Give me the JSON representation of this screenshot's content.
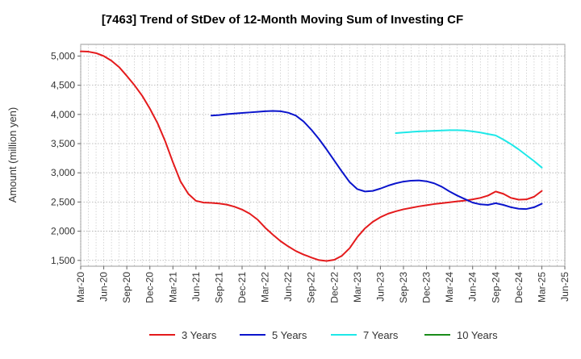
{
  "chart_data": {
    "type": "line",
    "title": "[7463]  Trend of StDev of 12-Month Moving Sum of Investing CF",
    "xlabel": "",
    "ylabel": "Amount (million yen)",
    "ylim": [
      1400,
      5200
    ],
    "y_ticks": [
      1500,
      2000,
      2500,
      3000,
      3500,
      4000,
      4500,
      5000
    ],
    "y_tick_labels": [
      "1,500",
      "2,000",
      "2,500",
      "3,000",
      "3,500",
      "4,000",
      "4,500",
      "5,000"
    ],
    "x_range": [
      "Mar-20",
      "Jun-25"
    ],
    "x_tick_labels": [
      "Mar-20",
      "Jun-20",
      "Sep-20",
      "Dec-20",
      "Mar-21",
      "Jun-21",
      "Sep-21",
      "Dec-21",
      "Mar-22",
      "Jun-22",
      "Sep-22",
      "Dec-22",
      "Mar-23",
      "Jun-23",
      "Sep-23",
      "Dec-23",
      "Mar-24",
      "Jun-24",
      "Sep-24",
      "Dec-24",
      "Mar-25",
      "Jun-25"
    ],
    "grid": true,
    "legend_position": "bottom",
    "series": [
      {
        "name": "3 Years",
        "color": "#e41a1c",
        "points": [
          [
            "Mar-20",
            5080
          ],
          [
            "Apr-20",
            5075
          ],
          [
            "May-20",
            5050
          ],
          [
            "Jun-20",
            5000
          ],
          [
            "Jul-20",
            4920
          ],
          [
            "Aug-20",
            4810
          ],
          [
            "Sep-20",
            4660
          ],
          [
            "Oct-20",
            4500
          ],
          [
            "Nov-20",
            4320
          ],
          [
            "Dec-20",
            4100
          ],
          [
            "Jan-21",
            3850
          ],
          [
            "Feb-21",
            3540
          ],
          [
            "Mar-21",
            3180
          ],
          [
            "Apr-21",
            2850
          ],
          [
            "May-21",
            2640
          ],
          [
            "Jun-21",
            2520
          ],
          [
            "Jul-21",
            2490
          ],
          [
            "Aug-21",
            2485
          ],
          [
            "Sep-21",
            2475
          ],
          [
            "Oct-21",
            2455
          ],
          [
            "Nov-21",
            2420
          ],
          [
            "Dec-21",
            2370
          ],
          [
            "Jan-22",
            2300
          ],
          [
            "Feb-22",
            2200
          ],
          [
            "Mar-22",
            2060
          ],
          [
            "Apr-22",
            1940
          ],
          [
            "May-22",
            1830
          ],
          [
            "Jun-22",
            1740
          ],
          [
            "Jul-22",
            1660
          ],
          [
            "Aug-22",
            1600
          ],
          [
            "Sep-22",
            1550
          ],
          [
            "Oct-22",
            1505
          ],
          [
            "Nov-22",
            1490
          ],
          [
            "Dec-22",
            1510
          ],
          [
            "Jan-23",
            1580
          ],
          [
            "Feb-23",
            1710
          ],
          [
            "Mar-23",
            1900
          ],
          [
            "Apr-23",
            2050
          ],
          [
            "May-23",
            2160
          ],
          [
            "Jun-23",
            2240
          ],
          [
            "Jul-23",
            2300
          ],
          [
            "Aug-23",
            2340
          ],
          [
            "Sep-23",
            2375
          ],
          [
            "Oct-23",
            2400
          ],
          [
            "Nov-23",
            2425
          ],
          [
            "Dec-23",
            2445
          ],
          [
            "Jan-24",
            2465
          ],
          [
            "Feb-24",
            2480
          ],
          [
            "Mar-24",
            2495
          ],
          [
            "Apr-24",
            2510
          ],
          [
            "May-24",
            2525
          ],
          [
            "Jun-24",
            2545
          ],
          [
            "Jul-24",
            2570
          ],
          [
            "Aug-24",
            2610
          ],
          [
            "Sep-24",
            2680
          ],
          [
            "Oct-24",
            2640
          ],
          [
            "Nov-24",
            2570
          ],
          [
            "Dec-24",
            2540
          ],
          [
            "Jan-25",
            2545
          ],
          [
            "Feb-25",
            2590
          ],
          [
            "Mar-25",
            2690
          ]
        ]
      },
      {
        "name": "5 Years",
        "color": "#0a14cc",
        "points": [
          [
            "Aug-21",
            3980
          ],
          [
            "Sep-21",
            3990
          ],
          [
            "Oct-21",
            4005
          ],
          [
            "Nov-21",
            4015
          ],
          [
            "Dec-21",
            4025
          ],
          [
            "Jan-22",
            4035
          ],
          [
            "Feb-22",
            4045
          ],
          [
            "Mar-22",
            4055
          ],
          [
            "Apr-22",
            4060
          ],
          [
            "May-22",
            4055
          ],
          [
            "Jun-22",
            4030
          ],
          [
            "Jul-22",
            3980
          ],
          [
            "Aug-22",
            3880
          ],
          [
            "Sep-22",
            3740
          ],
          [
            "Oct-22",
            3580
          ],
          [
            "Nov-22",
            3400
          ],
          [
            "Dec-22",
            3210
          ],
          [
            "Jan-23",
            3020
          ],
          [
            "Feb-23",
            2840
          ],
          [
            "Mar-23",
            2720
          ],
          [
            "Apr-23",
            2680
          ],
          [
            "May-23",
            2690
          ],
          [
            "Jun-23",
            2730
          ],
          [
            "Jul-23",
            2780
          ],
          [
            "Aug-23",
            2820
          ],
          [
            "Sep-23",
            2850
          ],
          [
            "Oct-23",
            2865
          ],
          [
            "Nov-23",
            2870
          ],
          [
            "Dec-23",
            2855
          ],
          [
            "Jan-24",
            2820
          ],
          [
            "Feb-24",
            2760
          ],
          [
            "Mar-24",
            2680
          ],
          [
            "Apr-24",
            2610
          ],
          [
            "May-24",
            2550
          ],
          [
            "Jun-24",
            2490
          ],
          [
            "Jul-24",
            2460
          ],
          [
            "Aug-24",
            2450
          ],
          [
            "Sep-24",
            2480
          ],
          [
            "Oct-24",
            2450
          ],
          [
            "Nov-24",
            2410
          ],
          [
            "Dec-24",
            2385
          ],
          [
            "Jan-25",
            2380
          ],
          [
            "Feb-25",
            2410
          ],
          [
            "Mar-25",
            2470
          ]
        ]
      },
      {
        "name": "7 Years",
        "color": "#1ee8e8",
        "points": [
          [
            "Aug-23",
            3680
          ],
          [
            "Sep-23",
            3690
          ],
          [
            "Oct-23",
            3700
          ],
          [
            "Nov-23",
            3710
          ],
          [
            "Dec-23",
            3715
          ],
          [
            "Jan-24",
            3720
          ],
          [
            "Feb-24",
            3725
          ],
          [
            "Mar-24",
            3730
          ],
          [
            "Apr-24",
            3730
          ],
          [
            "May-24",
            3725
          ],
          [
            "Jun-24",
            3710
          ],
          [
            "Jul-24",
            3690
          ],
          [
            "Aug-24",
            3665
          ],
          [
            "Sep-24",
            3640
          ],
          [
            "Oct-24",
            3570
          ],
          [
            "Nov-24",
            3490
          ],
          [
            "Dec-24",
            3400
          ],
          [
            "Jan-25",
            3300
          ],
          [
            "Feb-25",
            3200
          ],
          [
            "Mar-25",
            3090
          ]
        ]
      },
      {
        "name": "10 Years",
        "color": "#1a8c1a",
        "points": []
      }
    ]
  }
}
